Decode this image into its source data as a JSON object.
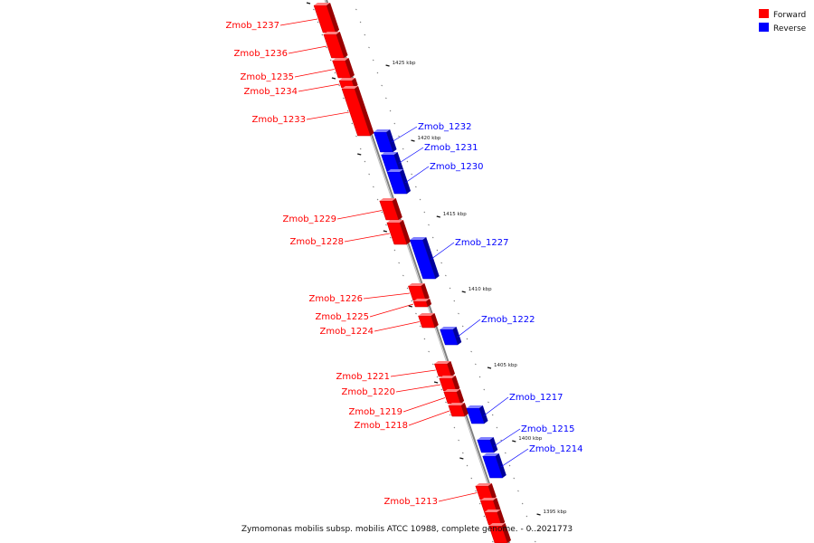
{
  "title": "Zymomonas mobilis subsp. mobilis ATCC 10988, complete genome. - 0..2021773",
  "legend": [
    {
      "label": "Forward",
      "color": "#ff0000"
    },
    {
      "label": "Reverse",
      "color": "#0000ff"
    }
  ],
  "colors": {
    "forward": "#ff0000",
    "reverse": "#0000ff",
    "backbone": "#808080"
  },
  "ticks": [
    "1425 kbp",
    "1420 kbp",
    "1415 kbp",
    "1410 kbp",
    "1405 kbp",
    "1400 kbp",
    "1395 kbp"
  ],
  "genes": [
    {
      "name": "Zmob_1237",
      "strand": "forward"
    },
    {
      "name": "Zmob_1236",
      "strand": "forward"
    },
    {
      "name": "Zmob_1235",
      "strand": "forward"
    },
    {
      "name": "Zmob_1234",
      "strand": "forward"
    },
    {
      "name": "Zmob_1233",
      "strand": "forward"
    },
    {
      "name": "Zmob_1232",
      "strand": "reverse"
    },
    {
      "name": "Zmob_1231",
      "strand": "reverse"
    },
    {
      "name": "Zmob_1230",
      "strand": "reverse"
    },
    {
      "name": "Zmob_1229",
      "strand": "forward"
    },
    {
      "name": "Zmob_1228",
      "strand": "forward"
    },
    {
      "name": "Zmob_1227",
      "strand": "reverse"
    },
    {
      "name": "Zmob_1226",
      "strand": "forward"
    },
    {
      "name": "Zmob_1225",
      "strand": "forward"
    },
    {
      "name": "Zmob_1224",
      "strand": "forward"
    },
    {
      "name": "Zmob_1222",
      "strand": "reverse"
    },
    {
      "name": "Zmob_1221",
      "strand": "forward"
    },
    {
      "name": "Zmob_1220",
      "strand": "forward"
    },
    {
      "name": "Zmob_1219",
      "strand": "forward"
    },
    {
      "name": "Zmob_1218",
      "strand": "forward"
    },
    {
      "name": "Zmob_1217",
      "strand": "reverse"
    },
    {
      "name": "Zmob_1215",
      "strand": "reverse"
    },
    {
      "name": "Zmob_1214",
      "strand": "reverse"
    },
    {
      "name": "Zmob_1213",
      "strand": "forward"
    }
  ]
}
